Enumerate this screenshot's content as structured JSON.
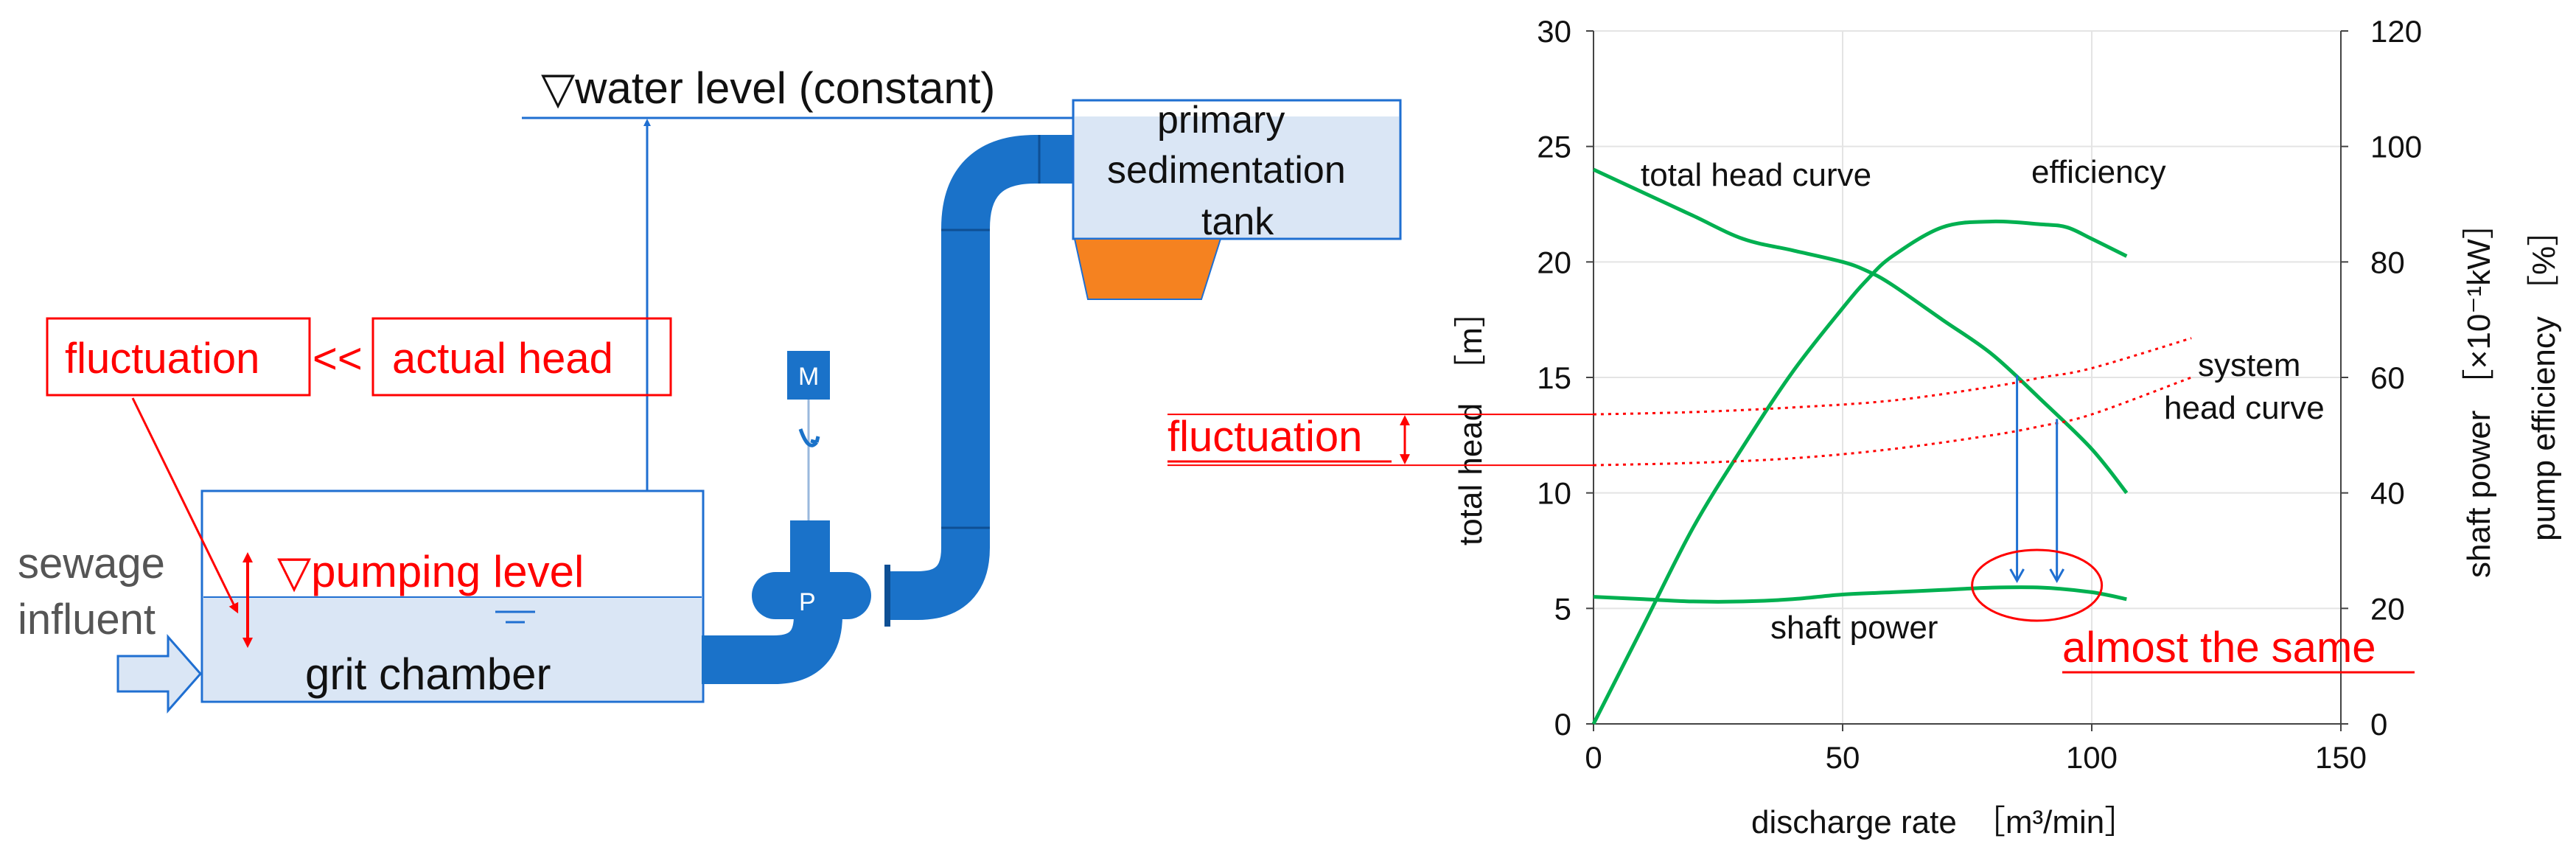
{
  "diagram": {
    "water_level_label": "▽water level (constant)",
    "tank_label_line1": "primary",
    "tank_label_line2": "sedimentation",
    "tank_label_line3": "tank",
    "fluctuation_label": "fluctuation",
    "compare_symbol": "<<",
    "actual_head_label": "actual head",
    "motor_label": "M",
    "pump_label": "P",
    "influent_line1": "sewage",
    "influent_line2": "influent",
    "pumping_level_label": "▽pumping level",
    "grit_chamber_label": "grit chamber",
    "colors": {
      "pipe": "#1a72c9",
      "tank_fill": "#dae6f5",
      "hopper": "#f58220",
      "annotation": "#ff0000"
    }
  },
  "chart_data": {
    "type": "line",
    "xlabel": "discharge rate　［m³/min］",
    "ylabel_left": "total head　［m］",
    "ylabel_right_1": "shaft power ［×10⁻¹kW］",
    "ylabel_right_2": "pump efficiency ［%］",
    "xlim": [
      0,
      150
    ],
    "ylim_left": [
      0,
      30
    ],
    "ylim_right": [
      0,
      120
    ],
    "x_ticks": [
      "0",
      "50",
      "100",
      "150"
    ],
    "y_left_ticks": [
      "0",
      "5",
      "10",
      "15",
      "20",
      "25",
      "30"
    ],
    "y_right_ticks": [
      "0",
      "20",
      "40",
      "60",
      "80",
      "100",
      "120"
    ],
    "grid": true,
    "series": [
      {
        "name": "total head curve",
        "axis": "left",
        "color": "#00b050",
        "x": [
          0,
          10,
          20,
          30,
          40,
          50,
          55,
          60,
          70,
          80,
          90,
          100,
          107
        ],
        "y": [
          24,
          23,
          22,
          21,
          20.5,
          20,
          19.6,
          19,
          17.5,
          16,
          14,
          11.9,
          10
        ]
      },
      {
        "name": "efficiency",
        "axis": "right",
        "color": "#00b050",
        "x": [
          0,
          10,
          20,
          30,
          40,
          50,
          55,
          60,
          70,
          80,
          90,
          95,
          100,
          107
        ],
        "y": [
          0,
          17,
          34,
          48,
          61,
          72,
          77,
          81,
          86,
          87,
          86.5,
          86,
          84,
          81
        ]
      },
      {
        "name": "shaft power",
        "axis": "left",
        "color": "#00b050",
        "x": [
          0,
          10,
          20,
          30,
          40,
          50,
          60,
          70,
          80,
          90,
          100,
          107
        ],
        "y": [
          5.5,
          5.4,
          5.3,
          5.3,
          5.4,
          5.6,
          5.7,
          5.8,
          5.9,
          5.9,
          5.7,
          5.4
        ]
      },
      {
        "name": "",
        "axis": "left",
        "color": "#ff0000",
        "dashed": true,
        "x": [
          0,
          20,
          40,
          60,
          80,
          90,
          100,
          120
        ],
        "y": [
          13.4,
          13.5,
          13.7,
          14.0,
          14.6,
          15.0,
          15.4,
          16.7
        ]
      },
      {
        "name": "",
        "axis": "left",
        "color": "#ff0000",
        "dashed": true,
        "x": [
          0,
          20,
          40,
          60,
          80,
          90,
          100,
          120
        ],
        "y": [
          11.2,
          11.3,
          11.5,
          11.9,
          12.5,
          12.9,
          13.4,
          15.0
        ]
      }
    ],
    "annotations": {
      "total_head_curve": "total head curve",
      "efficiency": "efficiency",
      "system_head_line1": "system",
      "system_head_line2": "head curve",
      "shaft_power": "shaft power",
      "fluctuation": "fluctuation",
      "almost_same": "almost the same"
    },
    "operating_points": [
      {
        "x": 85,
        "head": 15.1,
        "shaft_power": 6.0
      },
      {
        "x": 93,
        "head": 13.2,
        "shaft_power": 6.0
      }
    ]
  }
}
